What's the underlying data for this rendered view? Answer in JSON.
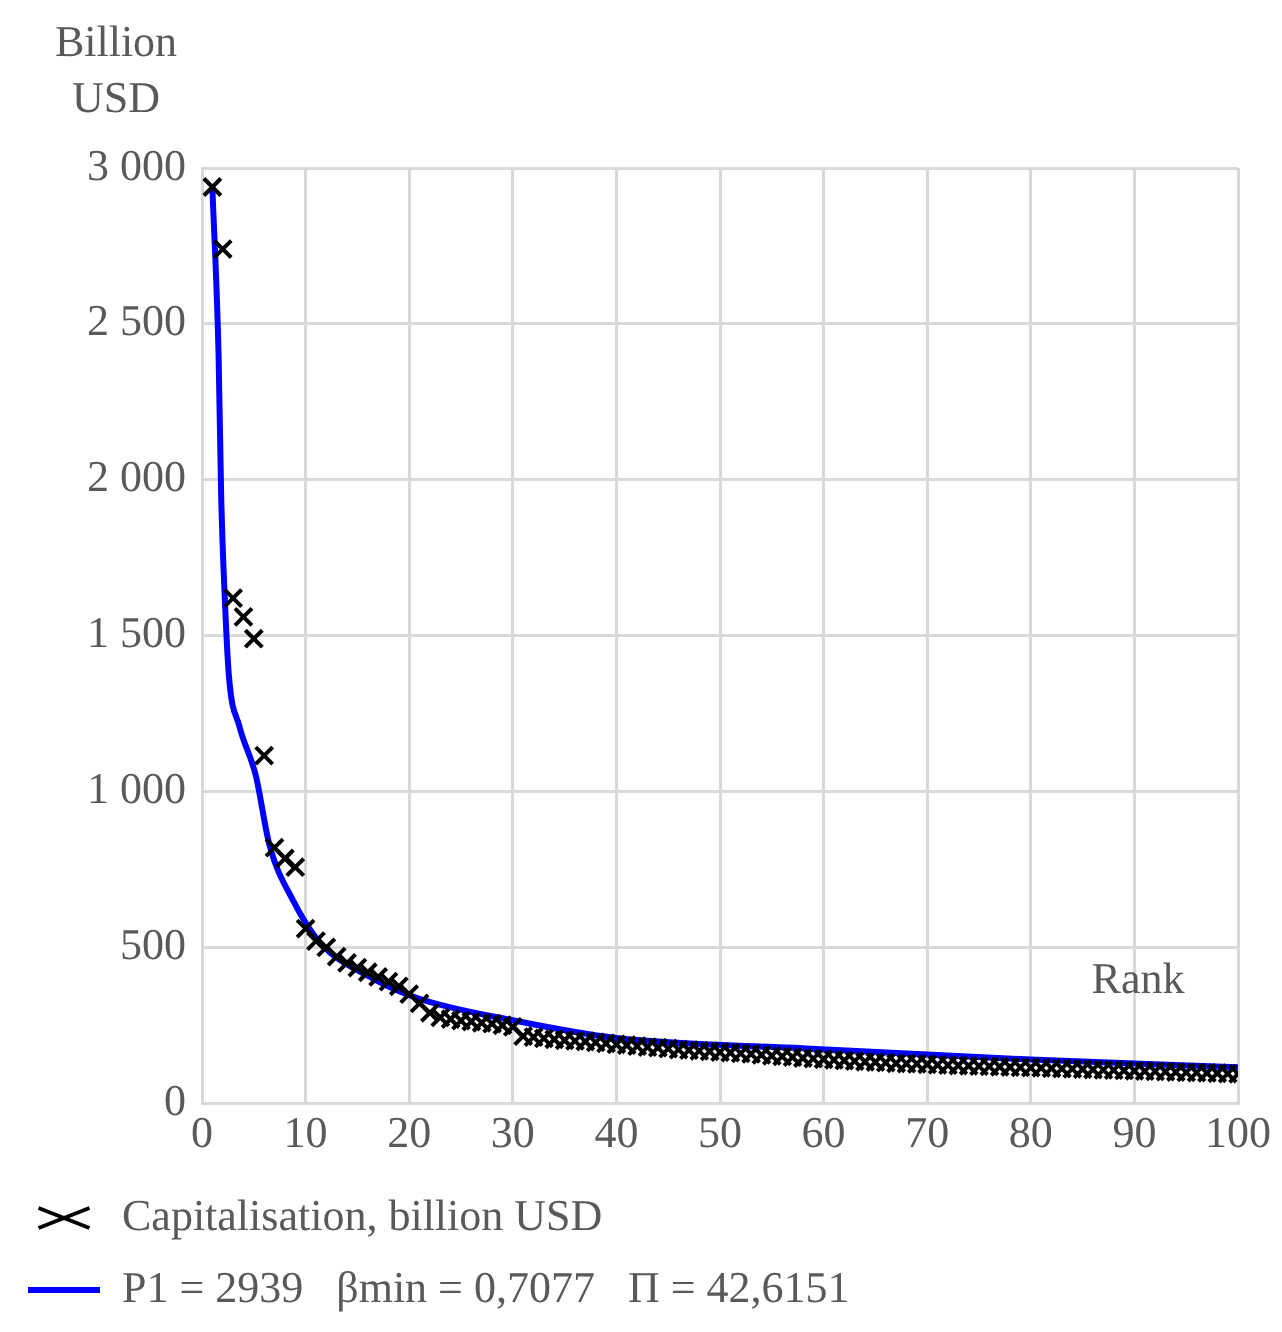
{
  "chart_data": {
    "type": "scatter",
    "ylabel": "Billion USD",
    "xlabel": "Rank",
    "xlim": [
      0,
      100
    ],
    "xticks": [
      0,
      10,
      20,
      30,
      40,
      50,
      60,
      70,
      80,
      90,
      100
    ],
    "ylim": [
      0,
      3000
    ],
    "yticks": [
      0,
      500,
      {
        "value": 1000,
        "label": "1 000"
      },
      {
        "value": 1500,
        "label": "1 500"
      },
      {
        "value": 2000,
        "label": "2 000"
      },
      {
        "value": 2500,
        "label": "2 500"
      },
      {
        "value": 3000,
        "label": "3 000"
      }
    ],
    "grid": true,
    "legend": "bottom",
    "series": [
      {
        "name": "Capitalisation, billion USD",
        "type": "scatter",
        "marker": "cross",
        "color": "#000000",
        "x": [
          1,
          2,
          3,
          4,
          5,
          6,
          7,
          8,
          9,
          10,
          11,
          12,
          13,
          14,
          15,
          16,
          17,
          18,
          19,
          20,
          21,
          22,
          23,
          24,
          25,
          26,
          27,
          28,
          29,
          30,
          31,
          32,
          33,
          34,
          35,
          36,
          37,
          38,
          39,
          40,
          41,
          42,
          43,
          44,
          45,
          46,
          47,
          48,
          49,
          50,
          51,
          52,
          53,
          54,
          55,
          56,
          57,
          58,
          59,
          60,
          61,
          62,
          63,
          64,
          65,
          66,
          67,
          68,
          69,
          70,
          71,
          72,
          73,
          74,
          75,
          76,
          77,
          78,
          79,
          80,
          81,
          82,
          83,
          84,
          85,
          86,
          87,
          88,
          89,
          90,
          91,
          92,
          93,
          94,
          95,
          96,
          97,
          98,
          99,
          100
        ],
        "values": [
          2939,
          2740,
          1620,
          1560,
          1490,
          1115,
          820,
          785,
          757,
          560,
          520,
          500,
          470,
          450,
          435,
          420,
          405,
          390,
          375,
          350,
          320,
          290,
          275,
          270,
          265,
          262,
          258,
          255,
          250,
          245,
          215,
          212,
          208,
          205,
          202,
          200,
          198,
          195,
          192,
          189,
          186,
          183,
          180,
          178,
          175,
          172,
          170,
          168,
          166,
          164,
          162,
          160,
          158,
          155,
          152,
          150,
          148,
          145,
          143,
          141,
          139,
          137,
          135,
          133,
          132,
          130,
          128,
          127,
          126,
          125,
          123,
          122,
          121,
          120,
          119,
          118,
          117,
          116,
          115,
          114,
          113,
          112,
          111,
          110,
          109,
          108,
          107,
          106,
          105,
          104,
          103,
          102,
          101,
          100,
          99,
          98,
          97,
          96,
          95,
          94
        ]
      },
      {
        "name": "P1 = 2939   βmin = 0,7077   Π = 42,6151",
        "type": "line",
        "marker": "none",
        "line_style": "solid",
        "color": "#0000ff",
        "x": [
          1,
          1.6,
          1.85,
          2.2,
          2.6,
          3.6,
          5.2,
          6.5,
          8.8,
          11.4,
          16.5,
          21,
          30,
          40,
          58,
          80,
          100
        ],
        "values": [
          2939,
          2400,
          1950,
          1620,
          1370,
          1210,
          1050,
          830,
          650,
          515,
          400,
          335,
          266,
          209,
          176,
          140,
          115
        ]
      }
    ]
  }
}
